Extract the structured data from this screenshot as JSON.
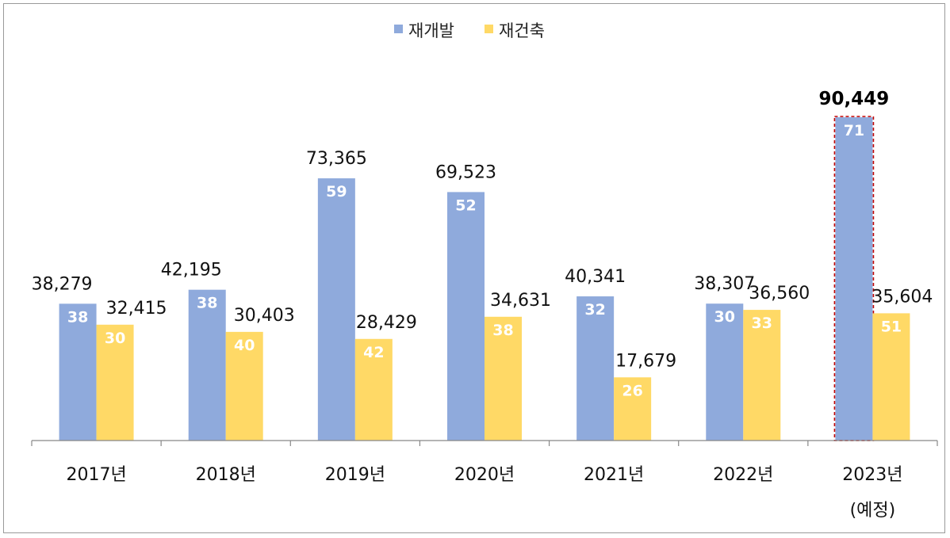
{
  "chart_data": {
    "type": "bar",
    "categories": [
      "2017년",
      "2018년",
      "2019년",
      "2020년",
      "2021년",
      "2022년",
      "2023년"
    ],
    "category_sublabels": [
      "",
      "",
      "",
      "",
      "",
      "",
      "(예정)"
    ],
    "series": [
      {
        "name": "재개발",
        "color": "#8FAADC",
        "values": [
          38279,
          42195,
          73365,
          69523,
          40341,
          38307,
          90449
        ],
        "value_labels": [
          "38,279",
          "42,195",
          "73,365",
          "69,523",
          "40,341",
          "38,307",
          "90,449"
        ],
        "inner_labels": [
          "38",
          "38",
          "59",
          "52",
          "32",
          "30",
          "71"
        ]
      },
      {
        "name": "재건축",
        "color": "#FFD966",
        "values": [
          32415,
          30403,
          28429,
          34631,
          17679,
          36560,
          35604
        ],
        "value_labels": [
          "32,415",
          "30,403",
          "28,429",
          "34,631",
          "17,679",
          "36,560",
          "35,604"
        ],
        "inner_labels": [
          "30",
          "40",
          "42",
          "38",
          "26",
          "33",
          "51"
        ]
      }
    ],
    "ylim": [
      0,
      90449
    ],
    "grid": false,
    "legend": "top-center",
    "highlight": {
      "category": "2023년",
      "series": "재개발",
      "border_color": "#C00000"
    }
  }
}
